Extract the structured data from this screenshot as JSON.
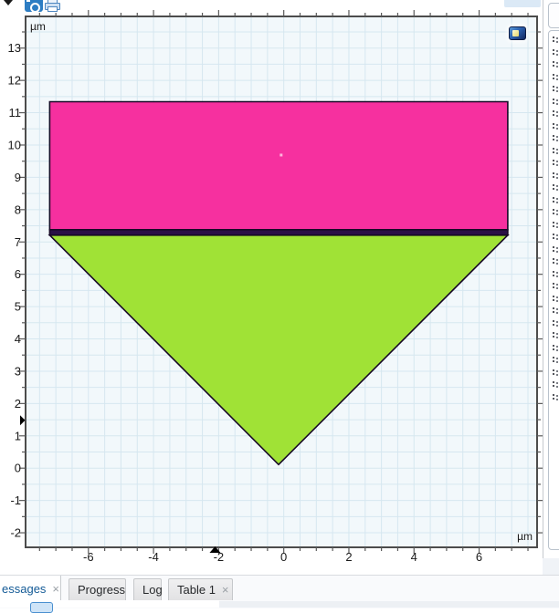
{
  "toolbar": {
    "dropdown_icon": "caret-down",
    "snapshot_icon": "camera",
    "print_icon": "printer"
  },
  "plot": {
    "unit_top_left": "µm",
    "unit_bottom_right": "µm"
  },
  "chart_data": {
    "type": "area",
    "title": "",
    "xlabel": "µm",
    "ylabel": "µm",
    "xlim": [
      -7.93,
      7.78
    ],
    "ylim": [
      -2.45,
      13.98
    ],
    "grid": true,
    "grid_step": 0.5,
    "x_tick_labels": [
      -6,
      -4,
      -2,
      0,
      2,
      4,
      6
    ],
    "y_tick_labels": [
      13,
      12,
      11,
      10,
      9,
      8,
      7,
      6,
      5,
      4,
      3,
      2,
      1,
      0,
      -1,
      -2
    ],
    "colors": {
      "plot_background": "#f2f8fb",
      "gridline": "#d6e7f0",
      "frame": "#4c4c4c",
      "tick": "#5a5a5a",
      "label_text": "#1a1a1a",
      "magenta_fill": "#f6309f",
      "layer_fill": "#2a1046",
      "green_fill": "#a0e236",
      "shape_stroke": "#170826"
    },
    "shapes": [
      {
        "name": "rectangle-domain",
        "fill": "#f6309f",
        "points": [
          [
            -7.19,
            11.34
          ],
          [
            6.88,
            11.34
          ],
          [
            6.88,
            7.38
          ],
          [
            -7.19,
            7.38
          ]
        ]
      },
      {
        "name": "thin-layer-domain",
        "fill": "#2a1046",
        "points": [
          [
            -7.19,
            7.38
          ],
          [
            6.88,
            7.38
          ],
          [
            6.88,
            7.21
          ],
          [
            -7.19,
            7.21
          ]
        ]
      },
      {
        "name": "tip-triangle-domain",
        "fill": "#a0e236",
        "points": [
          [
            -7.19,
            7.21
          ],
          [
            6.88,
            7.21
          ],
          [
            -0.16,
            0.11
          ]
        ]
      }
    ],
    "point_markers": [
      {
        "x": -0.08,
        "y": 9.69,
        "color": "#ffb3dd"
      }
    ],
    "axis_drag_markers": {
      "x": -2.11,
      "y": 1.48
    }
  },
  "right_panel": {
    "dot_rows": 30
  },
  "bottom_tabs": {
    "close_icon": "×",
    "tabs": [
      {
        "label": "essages",
        "active": true
      },
      {
        "label": "Progress",
        "active": false
      },
      {
        "label": "Log",
        "active": false
      },
      {
        "label": "Table 1",
        "active": false
      }
    ]
  }
}
